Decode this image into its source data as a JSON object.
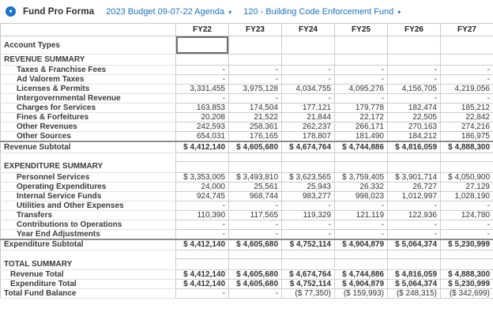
{
  "header": {
    "title": "Fund Pro Forma",
    "menu_icon_glyph": "▾",
    "budget_dropdown": {
      "value": "2023 Budget 09-07-22 Agenda",
      "caret_glyph": "▾"
    },
    "fund_dropdown": {
      "value": "120 - Building Code Enforcement Fund",
      "caret_glyph": "▾"
    }
  },
  "colors": {
    "link_blue": "#2272b9",
    "icon_blue": "#1c72c4",
    "grid_line": "#c9c9c9",
    "dark_line": "#8c8c8c"
  },
  "table": {
    "columns": [
      "FY22",
      "FY23",
      "FY24",
      "FY25",
      "FY26",
      "FY27"
    ],
    "rows": [
      {
        "type": "input",
        "label": "Account Types",
        "values": [
          "",
          "",
          "",
          "",
          "",
          ""
        ]
      },
      {
        "type": "section",
        "label": "REVENUE SUMMARY",
        "values": [
          "",
          "",
          "",
          "",
          "",
          ""
        ]
      },
      {
        "type": "detail",
        "label": "Taxes & Franchise Fees",
        "values": [
          "-",
          "-",
          "-",
          "-",
          "-",
          "-"
        ]
      },
      {
        "type": "detail",
        "label": "Ad Valorem Taxes",
        "values": [
          "-",
          "-",
          "-",
          "-",
          "-",
          "-"
        ]
      },
      {
        "type": "detail",
        "label": "Licenses & Permits",
        "values": [
          "3,331,455",
          "3,975,128",
          "4,034,755",
          "4,095,276",
          "4,156,705",
          "4,219,056"
        ]
      },
      {
        "type": "detail",
        "label": "Intergovernmental Revenue",
        "values": [
          "-",
          "-",
          "-",
          "-",
          "-",
          "-"
        ]
      },
      {
        "type": "detail",
        "label": "Charges for Services",
        "values": [
          "163,853",
          "174,504",
          "177,121",
          "179,778",
          "182,474",
          "185,212"
        ]
      },
      {
        "type": "detail",
        "label": "Fines & Forfeitures",
        "values": [
          "20,208",
          "21,522",
          "21,844",
          "22,172",
          "22,505",
          "22,842"
        ]
      },
      {
        "type": "detail",
        "label": "Other Revenues",
        "values": [
          "242,593",
          "258,361",
          "262,237",
          "266,171",
          "270,163",
          "274,216"
        ]
      },
      {
        "type": "detail",
        "label": "Other Sources",
        "values": [
          "654,031",
          "176,165",
          "178,807",
          "181,490",
          "184,212",
          "186,975"
        ]
      },
      {
        "type": "subtotal",
        "label": "Revenue Subtotal",
        "values": [
          "$ 4,412,140",
          "$ 4,605,680",
          "$ 4,674,764",
          "$ 4,744,886",
          "$ 4,816,059",
          "$ 4,888,300"
        ]
      },
      {
        "type": "spacer",
        "label": "",
        "values": [
          "",
          "",
          "",
          "",
          "",
          ""
        ]
      },
      {
        "type": "section",
        "label": "EXPENDITURE SUMMARY",
        "values": [
          "",
          "",
          "",
          "",
          "",
          ""
        ]
      },
      {
        "type": "detail",
        "label": "Personnel Services",
        "values": [
          "$ 3,353,005",
          "$ 3,493,810",
          "$ 3,623,565",
          "$ 3,759,405",
          "$ 3,901,714",
          "$ 4,050,900"
        ]
      },
      {
        "type": "detail",
        "label": "Operating Expenditures",
        "values": [
          "24,000",
          "25,561",
          "25,943",
          "26,332",
          "26,727",
          "27,129"
        ]
      },
      {
        "type": "detail",
        "label": "Internal Service Funds",
        "values": [
          "924,745",
          "968,744",
          "983,277",
          "998,023",
          "1,012,997",
          "1,028,190"
        ]
      },
      {
        "type": "detail",
        "label": "Utilities and Other Expenses",
        "values": [
          "-",
          "-",
          "-",
          "-",
          "-",
          "-"
        ]
      },
      {
        "type": "detail",
        "label": "Transfers",
        "values": [
          "110,390",
          "117,565",
          "119,329",
          "121,119",
          "122,936",
          "124,780"
        ]
      },
      {
        "type": "detail",
        "label": "Contributions to Operations",
        "values": [
          "-",
          "-",
          "-",
          "-",
          "-",
          "-"
        ]
      },
      {
        "type": "detail",
        "label": "Year End Adjustments",
        "values": [
          "-",
          "-",
          "-",
          "-",
          "-",
          "-"
        ]
      },
      {
        "type": "subtotal",
        "label": "Expenditure Subtotal",
        "values": [
          "$ 4,412,140",
          "$ 4,605,680",
          "$ 4,752,114",
          "$ 4,904,879",
          "$ 5,064,374",
          "$ 5,230,999"
        ]
      },
      {
        "type": "spacer",
        "label": "",
        "values": [
          "",
          "",
          "",
          "",
          "",
          ""
        ]
      },
      {
        "type": "section",
        "label": "TOTAL SUMMARY",
        "values": [
          "",
          "",
          "",
          "",
          "",
          ""
        ]
      },
      {
        "type": "total-line",
        "label": "Revenue Total",
        "values": [
          "$ 4,412,140",
          "$ 4,605,680",
          "$ 4,674,764",
          "$ 4,744,886",
          "$ 4,816,059",
          "$ 4,888,300"
        ]
      },
      {
        "type": "total-line",
        "label": "Expenditure Total",
        "values": [
          "$ 4,412,140",
          "$ 4,605,680",
          "$ 4,752,114",
          "$ 4,904,879",
          "$ 5,064,374",
          "$ 5,230,999"
        ]
      },
      {
        "type": "grand-total",
        "label": "Total Fund Balance",
        "values": [
          "-",
          "-",
          "($ 77,350)",
          "($ 159,993)",
          "($ 248,315)",
          "($ 342,699)"
        ]
      }
    ]
  }
}
